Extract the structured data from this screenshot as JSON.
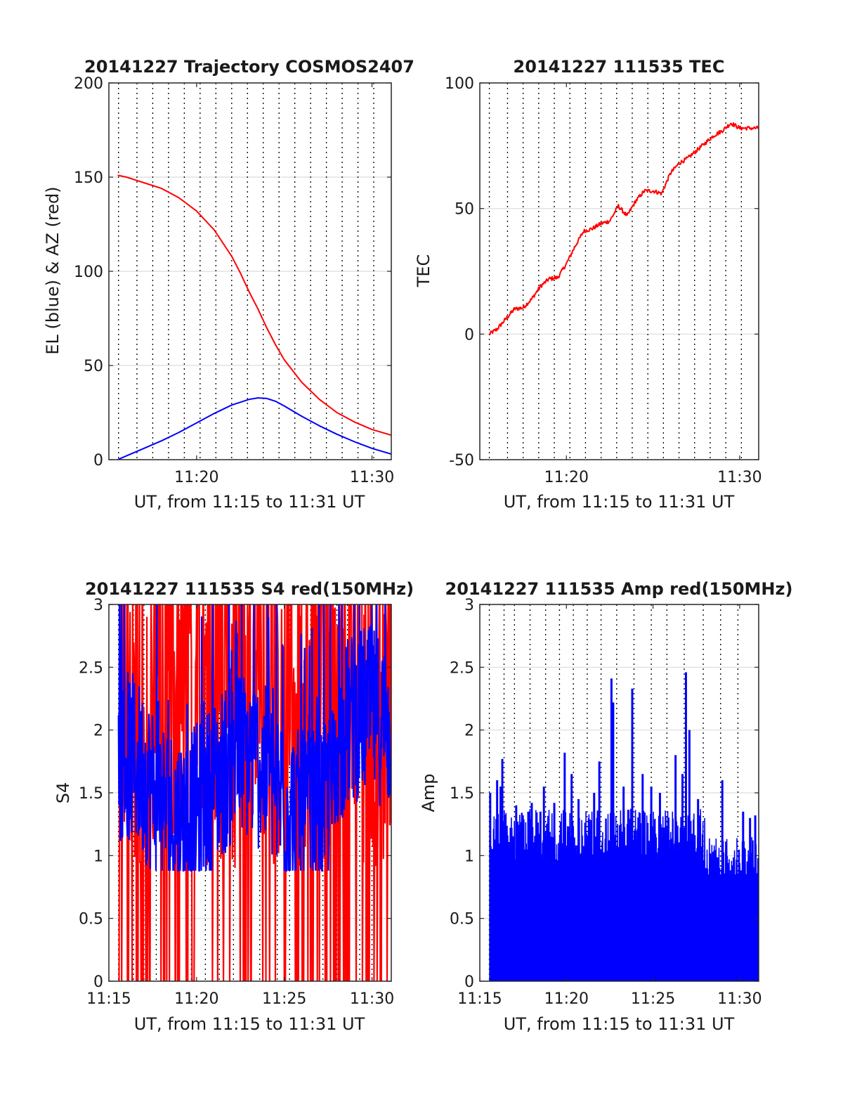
{
  "colors": {
    "el": "#0000ff",
    "az": "#ff0000",
    "tec": "#ff0000",
    "s4_red": "#ff0000",
    "s4_blue": "#0000ff",
    "amp": "#0000ff",
    "grid": "#dcdcdc",
    "vline": "#000000"
  },
  "chart_data": [
    {
      "type": "line",
      "title": "20141227 Trajectory COSMOS2407",
      "xlabel": "UT, from 11:15 to 11:31 UT",
      "ylabel": "EL (blue) & AZ (red)",
      "xlim": [
        15,
        31.1
      ],
      "ylim": [
        0,
        200
      ],
      "xticks": [
        20,
        30
      ],
      "xticklabels": [
        "11:20",
        "11:30"
      ],
      "yticks": [
        0,
        50,
        100,
        150,
        200
      ],
      "yticklabels": [
        "0",
        "50",
        "100",
        "150",
        "200"
      ],
      "grid": "horizontal",
      "vlines": [
        15.55,
        16.6,
        17.5,
        18.4,
        19.3,
        20.2,
        21.1,
        22.0,
        22.9,
        23.8,
        24.7,
        25.6,
        26.5,
        27.4,
        28.3,
        29.2,
        30.1
      ],
      "series": [
        {
          "color": "az",
          "x": [
            15.5,
            16,
            17,
            18,
            19,
            20,
            21,
            22,
            22.5,
            23,
            23.5,
            24,
            24.5,
            25,
            26,
            27,
            28,
            29,
            30,
            31.1
          ],
          "y": [
            151,
            150,
            147,
            144,
            139,
            132,
            122,
            108,
            99,
            89,
            80,
            70,
            61,
            53,
            41,
            32,
            25,
            20,
            16,
            13
          ]
        },
        {
          "color": "el",
          "x": [
            15.5,
            16,
            17,
            18,
            19,
            20,
            21,
            22,
            23,
            23.5,
            24,
            24.5,
            25,
            26,
            27,
            28,
            29,
            30,
            31.1
          ],
          "y": [
            0,
            2,
            6,
            10,
            14.5,
            19.5,
            24.5,
            29,
            32,
            32.8,
            32.5,
            31,
            28.5,
            23,
            18,
            13.5,
            9.5,
            6,
            3
          ]
        }
      ]
    },
    {
      "type": "line",
      "title": "20141227 111535 TEC",
      "xlabel": "UT, from 11:15 to 11:31 UT",
      "ylabel": "TEC",
      "xlim": [
        15,
        31.1
      ],
      "ylim": [
        -50,
        100
      ],
      "xticks": [
        20,
        30
      ],
      "xticklabels": [
        "11:20",
        "11:30"
      ],
      "yticks": [
        -50,
        0,
        50,
        100
      ],
      "yticklabels": [
        "-50",
        "0",
        "50",
        "100"
      ],
      "grid": "horizontal",
      "vlines": [
        15.55,
        16.6,
        17.5,
        18.4,
        19.3,
        20.2,
        21.1,
        22.0,
        22.9,
        23.8,
        24.7,
        25.6,
        26.5,
        27.4,
        28.3,
        29.2,
        30.1
      ],
      "series": [
        {
          "color": "tec",
          "x": [
            15.55,
            16,
            16.5,
            17,
            17.5,
            18,
            18.5,
            19,
            19.5,
            20,
            20.5,
            21,
            21.5,
            22,
            22.5,
            23,
            23.5,
            24,
            24.5,
            25,
            25.5,
            26,
            26.5,
            27,
            27.5,
            28,
            28.5,
            29,
            29.5,
            30,
            30.5,
            31.1
          ],
          "y": [
            0,
            2,
            6,
            10,
            10.5,
            14,
            19,
            22,
            22.5,
            28,
            35,
            41,
            42,
            44,
            45,
            51,
            47,
            53,
            57,
            57,
            56,
            64,
            68,
            70,
            73,
            76,
            79,
            81,
            84,
            82,
            82,
            82
          ]
        }
      ]
    },
    {
      "type": "line",
      "title": "20141227 111535 S4 red(150MHz)",
      "xlabel": "UT, from 11:15 to 11:31 UT",
      "ylabel": "S4",
      "xlim": [
        15,
        31.1
      ],
      "ylim": [
        0,
        3
      ],
      "xticks": [
        15,
        20,
        25,
        30
      ],
      "xticklabels": [
        "11:15",
        "11:20",
        "11:25",
        "11:30"
      ],
      "yticks": [
        0,
        0.5,
        1,
        1.5,
        2,
        2.5,
        3
      ],
      "yticklabels": [
        "0",
        "0.5",
        "1",
        "1.5",
        "2",
        "2.5",
        "3"
      ],
      "grid": "horizontal",
      "vlines": [
        15.55,
        16.4,
        17.0,
        17.7,
        18.3,
        19.0,
        19.7,
        20.5,
        21.3,
        22.1,
        22.7,
        23.6,
        24.6,
        25.3,
        25.8,
        26.5,
        27.2,
        28.0,
        28.6,
        29.3,
        30.0
      ],
      "series": [
        {
          "color": "s4_red",
          "note_range": [
            0,
            3
          ]
        },
        {
          "color": "s4_blue",
          "note_range": [
            0.85,
            3
          ]
        }
      ]
    },
    {
      "type": "line",
      "title": "20141227 111535 Amp red(150MHz)",
      "xlabel": "UT, from 11:15 to 11:31 UT",
      "ylabel": "Amp",
      "xlim": [
        15,
        31.1
      ],
      "ylim": [
        0,
        3
      ],
      "xticks": [
        15,
        20,
        25,
        30
      ],
      "xticklabels": [
        "11:15",
        "11:20",
        "11:25",
        "11:30"
      ],
      "yticks": [
        0,
        0.5,
        1,
        1.5,
        2,
        2.5,
        3
      ],
      "yticklabels": [
        "0",
        "0.5",
        "1",
        "1.5",
        "2",
        "2.5",
        "3"
      ],
      "grid": "horizontal",
      "vlines": [
        15.55,
        16.4,
        17.0,
        17.9,
        18.8,
        19.6,
        20.4,
        21.2,
        22.0,
        22.9,
        23.9,
        24.9,
        25.8,
        26.8,
        27.9,
        28.9,
        29.9
      ],
      "series": [
        {
          "color": "amp",
          "peaks": [
            [
              15.6,
              1.5
            ],
            [
              16.0,
              1.6
            ],
            [
              16.2,
              1.55
            ],
            [
              16.3,
              1.77
            ],
            [
              17.1,
              1.4
            ],
            [
              17.8,
              1.35
            ],
            [
              18.0,
              1.42
            ],
            [
              18.5,
              1.35
            ],
            [
              18.7,
              1.55
            ],
            [
              19.3,
              1.42
            ],
            [
              19.9,
              1.82
            ],
            [
              20.3,
              1.65
            ],
            [
              20.7,
              1.45
            ],
            [
              21.6,
              1.5
            ],
            [
              21.9,
              1.75
            ],
            [
              22.6,
              2.41
            ],
            [
              22.7,
              2.22
            ],
            [
              23.3,
              1.55
            ],
            [
              23.8,
              2.33
            ],
            [
              24.4,
              1.65
            ],
            [
              24.9,
              1.55
            ],
            [
              25.4,
              1.5
            ],
            [
              26.3,
              1.8
            ],
            [
              26.7,
              1.65
            ],
            [
              26.9,
              2.46
            ],
            [
              27.1,
              2.0
            ],
            [
              27.6,
              1.45
            ],
            [
              29.0,
              1.6
            ],
            [
              30.2,
              1.35
            ],
            [
              30.6,
              1.3
            ],
            [
              30.9,
              1.32
            ]
          ]
        }
      ]
    }
  ]
}
